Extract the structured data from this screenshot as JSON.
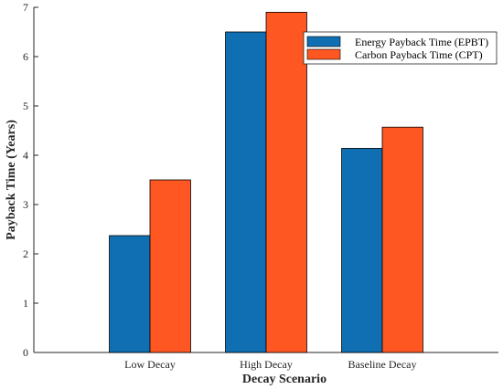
{
  "chart_data": {
    "type": "bar",
    "title": "",
    "xlabel": "Decay Scenario",
    "ylabel": "Payback Time (Years)",
    "categories": [
      "Low Decay",
      "High Decay",
      "Baseline Decay"
    ],
    "series": [
      {
        "name": "Energy Payback Time (EPBT)",
        "values": [
          2.37,
          6.5,
          4.14
        ],
        "color": "#0f6fb2"
      },
      {
        "name": "Carbon Payback Time (CPT)",
        "values": [
          3.5,
          6.9,
          4.57
        ],
        "color": "#ff5722"
      }
    ],
    "ylim": [
      0,
      7
    ],
    "yticks": [
      "0",
      "1",
      "2",
      "3",
      "4",
      "5",
      "6",
      "7"
    ],
    "x_extent": [
      0,
      4
    ],
    "grid": false,
    "legend_position": "top-right",
    "colors": {
      "axis": "#262626",
      "bar_edge": "#000000",
      "background": "#ffffff"
    }
  }
}
